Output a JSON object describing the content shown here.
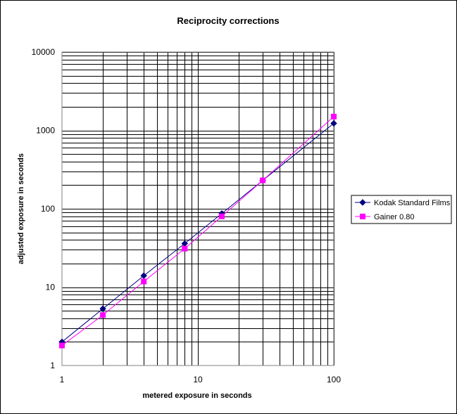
{
  "chart_data": {
    "type": "line",
    "title": "Reciprocity corrections",
    "xlabel": "metered exposure in seconds",
    "ylabel": "adjusted exposure in seconds",
    "x_scale": "log",
    "y_scale": "log",
    "xlim": [
      1,
      100
    ],
    "ylim": [
      1,
      10000
    ],
    "x_ticks": [
      "1",
      "10",
      "100"
    ],
    "y_ticks": [
      "1",
      "10",
      "100",
      "1000",
      "10000"
    ],
    "grid": true,
    "legend_position": "right",
    "series": [
      {
        "name": "Kodak Standard Films",
        "color": "#000080",
        "marker": "diamond",
        "x": [
          1,
          2,
          4,
          8,
          15,
          30,
          100
        ],
        "y": [
          2,
          5.3,
          14,
          36,
          87,
          230,
          1230
        ]
      },
      {
        "name": "Gainer 0.80",
        "color": "#ff00ff",
        "marker": "square",
        "x": [
          1,
          2,
          4,
          8,
          15,
          30,
          100
        ],
        "y": [
          1.8,
          4.4,
          11.8,
          31,
          80,
          230,
          1500
        ]
      }
    ]
  }
}
